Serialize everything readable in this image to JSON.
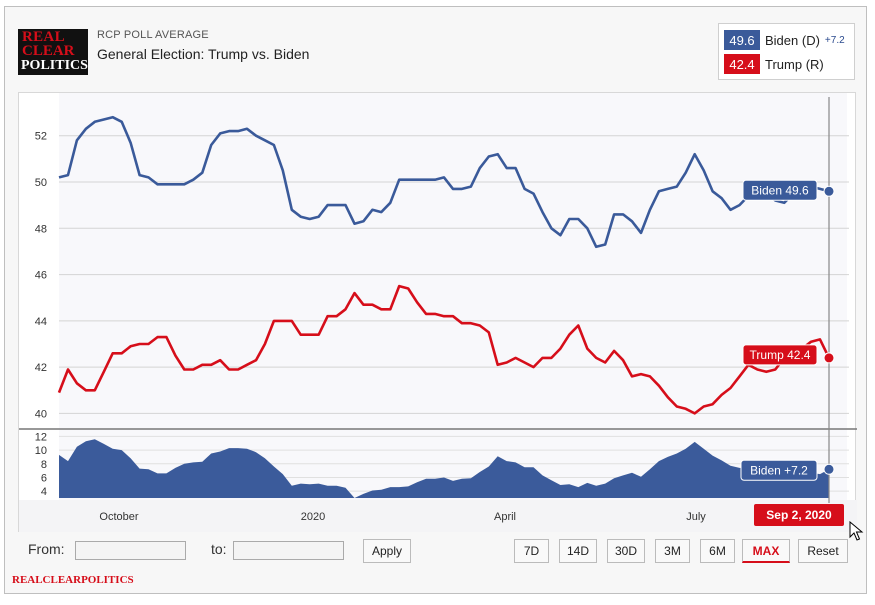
{
  "header": {
    "logo_line1": "REAL",
    "logo_line2": "CLEAR",
    "logo_line3": "POLITICS",
    "subtitle": "RCP POLL AVERAGE",
    "title": "General Election: Trump vs. Biden"
  },
  "legend": {
    "biden_value": "49.6",
    "biden_name": "Biden (D)",
    "biden_spread": "+7.2",
    "trump_value": "42.4",
    "trump_name": "Trump (R)"
  },
  "colors": {
    "biden": "#3a5a9a",
    "trump": "#d60e1a",
    "spread_fill": "#3b5b9b"
  },
  "chart_data": {
    "type": "line",
    "title": "General Election: Trump vs. Biden",
    "x_labels": [
      "October",
      "2020",
      "April",
      "July"
    ],
    "main_axis": {
      "ylim": [
        39.5,
        53.5
      ],
      "ticks": [
        52,
        50,
        48,
        46,
        44,
        42,
        40
      ]
    },
    "spread_axis": {
      "ylim": [
        3,
        12.5
      ],
      "ticks": [
        12,
        10,
        8,
        6,
        4
      ]
    },
    "series": [
      {
        "name": "Biden",
        "values": [
          50.2,
          50.3,
          51.8,
          52.3,
          52.6,
          52.7,
          52.8,
          52.6,
          51.7,
          50.3,
          50.2,
          49.9,
          49.9,
          49.9,
          49.9,
          50.1,
          50.4,
          51.6,
          52.1,
          52.2,
          52.2,
          52.3,
          52.0,
          51.8,
          51.6,
          50.5,
          48.8,
          48.5,
          48.4,
          48.5,
          49.0,
          49.0,
          49.0,
          48.2,
          48.3,
          48.8,
          48.7,
          49.1,
          50.1,
          50.1,
          50.1,
          50.1,
          50.1,
          50.2,
          49.7,
          49.7,
          49.8,
          50.6,
          51.1,
          51.2,
          50.6,
          50.6,
          49.7,
          49.5,
          48.7,
          48.0,
          47.7,
          48.4,
          48.4,
          48.0,
          47.2,
          47.3,
          48.6,
          48.6,
          48.3,
          47.8,
          48.8,
          49.6,
          49.7,
          49.8,
          50.4,
          51.2,
          50.5,
          49.6,
          49.3,
          48.8,
          49.0,
          49.4,
          49.8,
          49.5,
          49.2,
          49.1,
          49.5,
          49.3,
          49.8,
          49.7,
          49.6
        ],
        "last_label": "Biden 49.6"
      },
      {
        "name": "Trump",
        "values": [
          40.9,
          41.9,
          41.3,
          41.0,
          41.0,
          41.8,
          42.6,
          42.6,
          42.9,
          43.0,
          43.0,
          43.3,
          43.3,
          42.5,
          41.9,
          41.9,
          42.1,
          42.1,
          42.3,
          41.9,
          41.9,
          42.1,
          42.3,
          43.0,
          44.0,
          44.0,
          44.0,
          43.4,
          43.4,
          43.4,
          44.2,
          44.2,
          44.5,
          45.2,
          44.7,
          44.7,
          44.5,
          44.5,
          45.5,
          45.4,
          44.8,
          44.3,
          44.3,
          44.2,
          44.2,
          43.9,
          43.9,
          43.8,
          43.5,
          42.1,
          42.2,
          42.4,
          42.2,
          42.0,
          42.4,
          42.4,
          42.8,
          43.4,
          43.8,
          42.8,
          42.4,
          42.2,
          42.7,
          42.3,
          41.6,
          41.7,
          41.6,
          41.2,
          40.7,
          40.3,
          40.2,
          40.0,
          40.3,
          40.4,
          40.8,
          41.1,
          41.6,
          42.1,
          41.9,
          41.8,
          41.9,
          42.4,
          42.5,
          42.8,
          43.1,
          43.2,
          42.4
        ],
        "last_label": "Trump 42.4"
      },
      {
        "name": "Biden spread",
        "values": [
          9.3,
          8.4,
          10.5,
          11.3,
          11.6,
          10.9,
          10.2,
          10.0,
          8.8,
          7.3,
          7.2,
          6.6,
          6.6,
          7.4,
          8.0,
          8.2,
          8.3,
          9.5,
          9.8,
          10.3,
          10.3,
          10.2,
          9.7,
          8.8,
          7.6,
          6.5,
          4.8,
          5.1,
          5.0,
          5.1,
          4.8,
          4.8,
          4.5,
          3.0,
          3.6,
          4.1,
          4.2,
          4.6,
          4.6,
          4.7,
          5.3,
          5.8,
          5.8,
          6.0,
          5.5,
          5.8,
          5.9,
          6.8,
          7.6,
          9.1,
          8.4,
          8.2,
          7.5,
          7.5,
          6.3,
          5.6,
          4.9,
          5.0,
          4.6,
          5.2,
          4.8,
          5.1,
          5.9,
          6.3,
          6.7,
          6.1,
          7.2,
          8.4,
          9.0,
          9.5,
          10.2,
          11.2,
          10.2,
          9.2,
          8.5,
          7.7,
          7.4,
          7.3,
          7.9,
          7.7,
          7.3,
          6.7,
          7.0,
          6.5,
          6.7,
          6.5,
          7.2
        ],
        "last_label": "Biden +7.2"
      }
    ],
    "date_badge": "Sep 2, 2020"
  },
  "controls": {
    "from_label": "From:",
    "to_label": "to:",
    "from_value": "",
    "to_value": "",
    "apply_label": "Apply",
    "ranges": [
      "7D",
      "14D",
      "30D",
      "3M",
      "6M",
      "MAX",
      "Reset"
    ],
    "active_range": "MAX"
  },
  "footer": {
    "brand": "REALCLEARPOLITICS"
  }
}
